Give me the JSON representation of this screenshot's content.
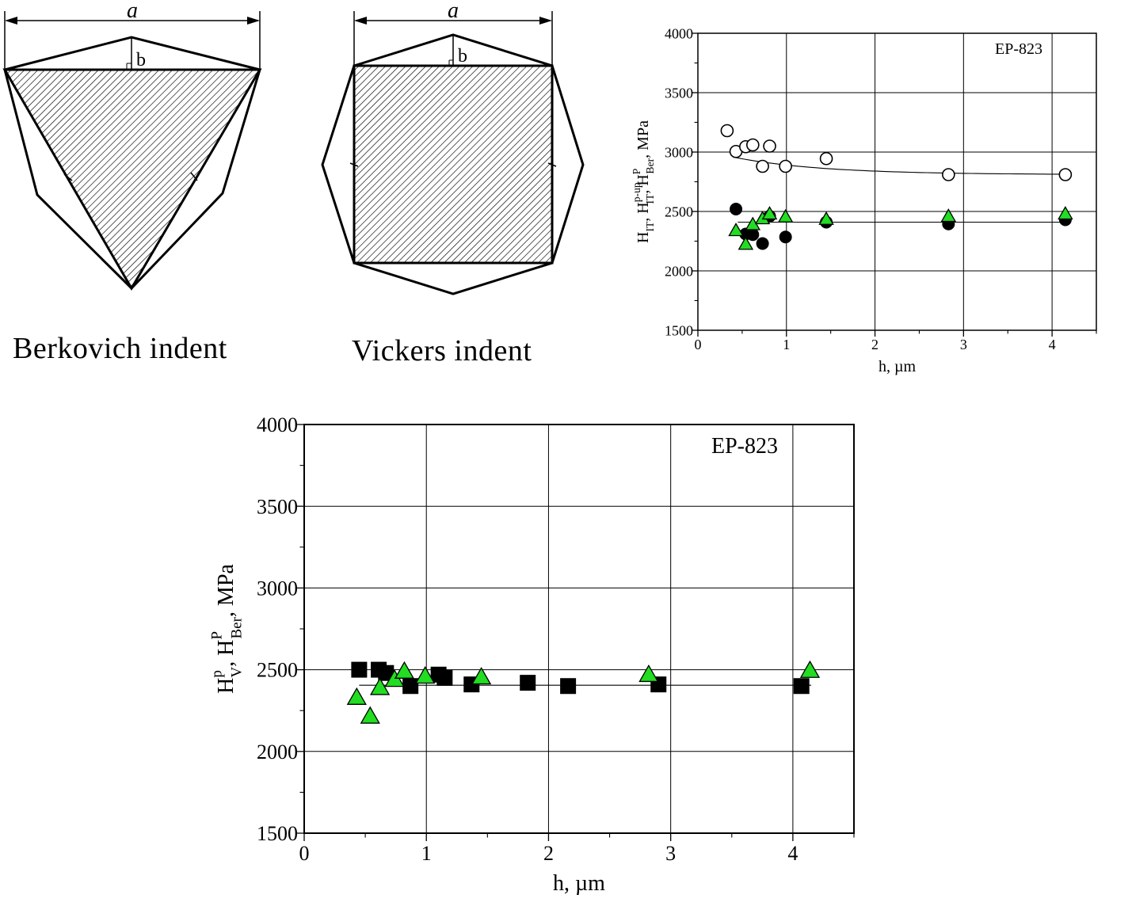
{
  "diagrams": {
    "dim_label": "a",
    "apothem_label": "b",
    "berkovich_caption": "Berkovich indent",
    "vickers_caption": "Vickers indent"
  },
  "chart_data": [
    {
      "type": "scatter",
      "annotation": "EP-823",
      "xlabel": "h, µm",
      "ylabel": {
        "base": "H",
        "parts": [
          {
            "sub": "IT",
            "sup": ""
          },
          {
            "sub": "IT",
            "sup": "p-up"
          },
          {
            "sub": "Ber",
            "sup": "P"
          }
        ],
        "unit": "MPa"
      },
      "xlim": [
        0,
        4.5
      ],
      "ylim": [
        1500,
        4000
      ],
      "xticks": [
        0,
        1,
        2,
        3,
        4
      ],
      "yticks": [
        1500,
        2000,
        2500,
        3000,
        3500,
        4000
      ],
      "grid": true,
      "series": [
        {
          "marker": "open-circle",
          "color": "#000000",
          "x": [
            0.33,
            0.43,
            0.54,
            0.62,
            0.73,
            0.81,
            0.99,
            1.45,
            2.83,
            4.15
          ],
          "y": [
            3180,
            3005,
            3045,
            3060,
            2880,
            3050,
            2880,
            2945,
            2810,
            2810
          ]
        },
        {
          "marker": "filled-circle",
          "color": "#000000",
          "x": [
            0.43,
            0.54,
            0.62,
            0.73,
            0.81,
            0.99,
            1.45,
            2.83,
            4.15
          ],
          "y": [
            2520,
            2310,
            2305,
            2230,
            2460,
            2285,
            2410,
            2395,
            2430
          ]
        },
        {
          "marker": "triangle",
          "color": "#22dd22",
          "x": [
            0.43,
            0.54,
            0.62,
            0.73,
            0.81,
            0.99,
            1.45,
            2.83,
            4.15
          ],
          "y": [
            2340,
            2225,
            2390,
            2440,
            2480,
            2455,
            2435,
            2460,
            2480
          ]
        }
      ],
      "fits": [
        {
          "kind": "decay",
          "x": [
            0.4,
            4.15
          ],
          "a": 2810,
          "b": 220,
          "c": 1.0
        },
        {
          "kind": "flat",
          "x": [
            0.45,
            4.15
          ],
          "y": 2410
        }
      ]
    },
    {
      "type": "scatter",
      "annotation": "EP-823",
      "xlabel": "h, µm",
      "ylabel": {
        "base": "H",
        "parts": [
          {
            "sub": "V",
            "sup": "p"
          },
          {
            "sub": "Ber",
            "sup": "P"
          }
        ],
        "unit": "MPa"
      },
      "xlim": [
        0,
        4.5
      ],
      "ylim": [
        1500,
        4000
      ],
      "xticks": [
        0,
        1,
        2,
        3,
        4
      ],
      "yticks": [
        1500,
        2000,
        2500,
        3000,
        3500,
        4000
      ],
      "grid": true,
      "series": [
        {
          "marker": "filled-square",
          "color": "#000000",
          "x": [
            0.45,
            0.61,
            0.67,
            0.87,
            1.1,
            1.15,
            1.37,
            1.83,
            2.16,
            2.9,
            4.07
          ],
          "y": [
            2500,
            2500,
            2480,
            2400,
            2470,
            2450,
            2410,
            2420,
            2400,
            2410,
            2400
          ]
        },
        {
          "marker": "triangle",
          "color": "#22dd22",
          "x": [
            0.43,
            0.54,
            0.62,
            0.74,
            0.82,
            0.99,
            1.45,
            2.82,
            4.14
          ],
          "y": [
            2330,
            2215,
            2390,
            2440,
            2490,
            2460,
            2455,
            2470,
            2495
          ]
        }
      ],
      "fits": [
        {
          "kind": "flat",
          "x": [
            0.45,
            4.15
          ],
          "y": 2405
        }
      ]
    }
  ]
}
